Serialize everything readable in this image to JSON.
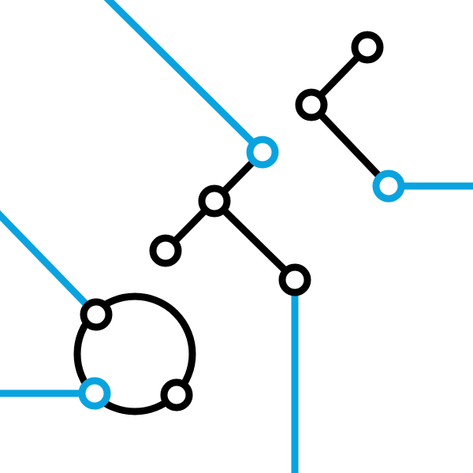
{
  "diagram": {
    "type": "network-graph",
    "colors": {
      "background": "#ffffff",
      "primary": "#000000",
      "accent": "#0aa3e0"
    },
    "nodes": [
      {
        "id": "n-top-right",
        "color": "primary"
      },
      {
        "id": "n-upper-mid",
        "color": "primary"
      },
      {
        "id": "n-right-connector",
        "color": "accent"
      },
      {
        "id": "n-upper-connector",
        "color": "accent"
      },
      {
        "id": "n-center-hub",
        "color": "primary"
      },
      {
        "id": "n-center-left",
        "color": "primary"
      },
      {
        "id": "n-lower-right",
        "color": "primary"
      },
      {
        "id": "n-ring-top",
        "color": "primary"
      },
      {
        "id": "n-ring-left",
        "color": "accent"
      },
      {
        "id": "n-ring-right",
        "color": "primary"
      }
    ],
    "edges": [
      {
        "from": "n-top-right",
        "to": "n-upper-mid",
        "color": "primary"
      },
      {
        "from": "n-upper-mid",
        "to": "n-right-connector",
        "color": "primary"
      },
      {
        "from": "n-upper-connector",
        "to": "n-center-hub",
        "color": "primary"
      },
      {
        "from": "n-center-hub",
        "to": "n-center-left",
        "color": "primary"
      },
      {
        "from": "n-center-hub",
        "to": "n-lower-right",
        "color": "primary"
      }
    ],
    "rings": [
      {
        "id": "ring-lower-left",
        "color": "primary"
      }
    ],
    "external_lines": [
      {
        "id": "line-upper-diagonal",
        "color": "accent",
        "attached_to": "n-upper-connector"
      },
      {
        "id": "line-right-horizontal",
        "color": "accent",
        "attached_to": "n-right-connector"
      },
      {
        "id": "line-lower-vertical",
        "color": "accent",
        "attached_to": "n-lower-right"
      },
      {
        "id": "line-left-diagonal",
        "color": "accent",
        "attached_to": "n-ring-top"
      },
      {
        "id": "line-left-horizontal",
        "color": "accent",
        "attached_to": "n-ring-left"
      }
    ]
  }
}
